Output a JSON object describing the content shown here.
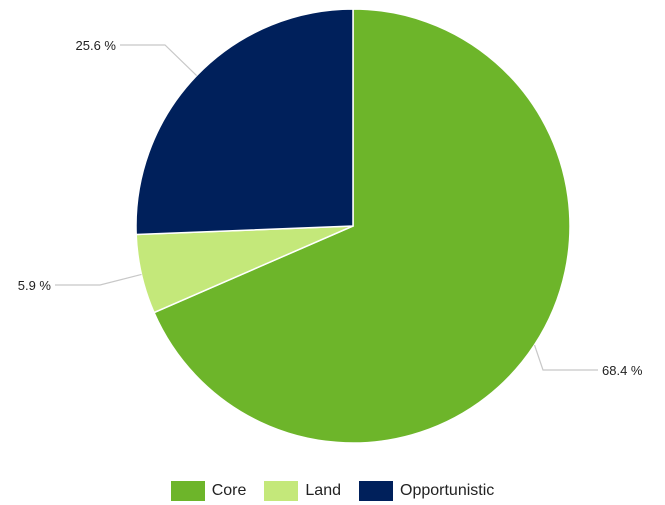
{
  "chart_data": {
    "type": "pie",
    "title": "",
    "categories": [
      "Core",
      "Land",
      "Opportunistic"
    ],
    "values": [
      68.4,
      5.9,
      25.6
    ],
    "data_labels": [
      "68.4 %",
      "5.9 %",
      "25.6 %"
    ],
    "colors": [
      "#6db52a",
      "#c4e87a",
      "#00205b"
    ],
    "start_angle_deg": 0,
    "direction": "clockwise",
    "legend_position": "bottom",
    "legend": [
      {
        "label": "Core",
        "color": "#6db52a"
      },
      {
        "label": "Land",
        "color": "#c4e87a"
      },
      {
        "label": "Opportunistic",
        "color": "#00205b"
      }
    ]
  }
}
